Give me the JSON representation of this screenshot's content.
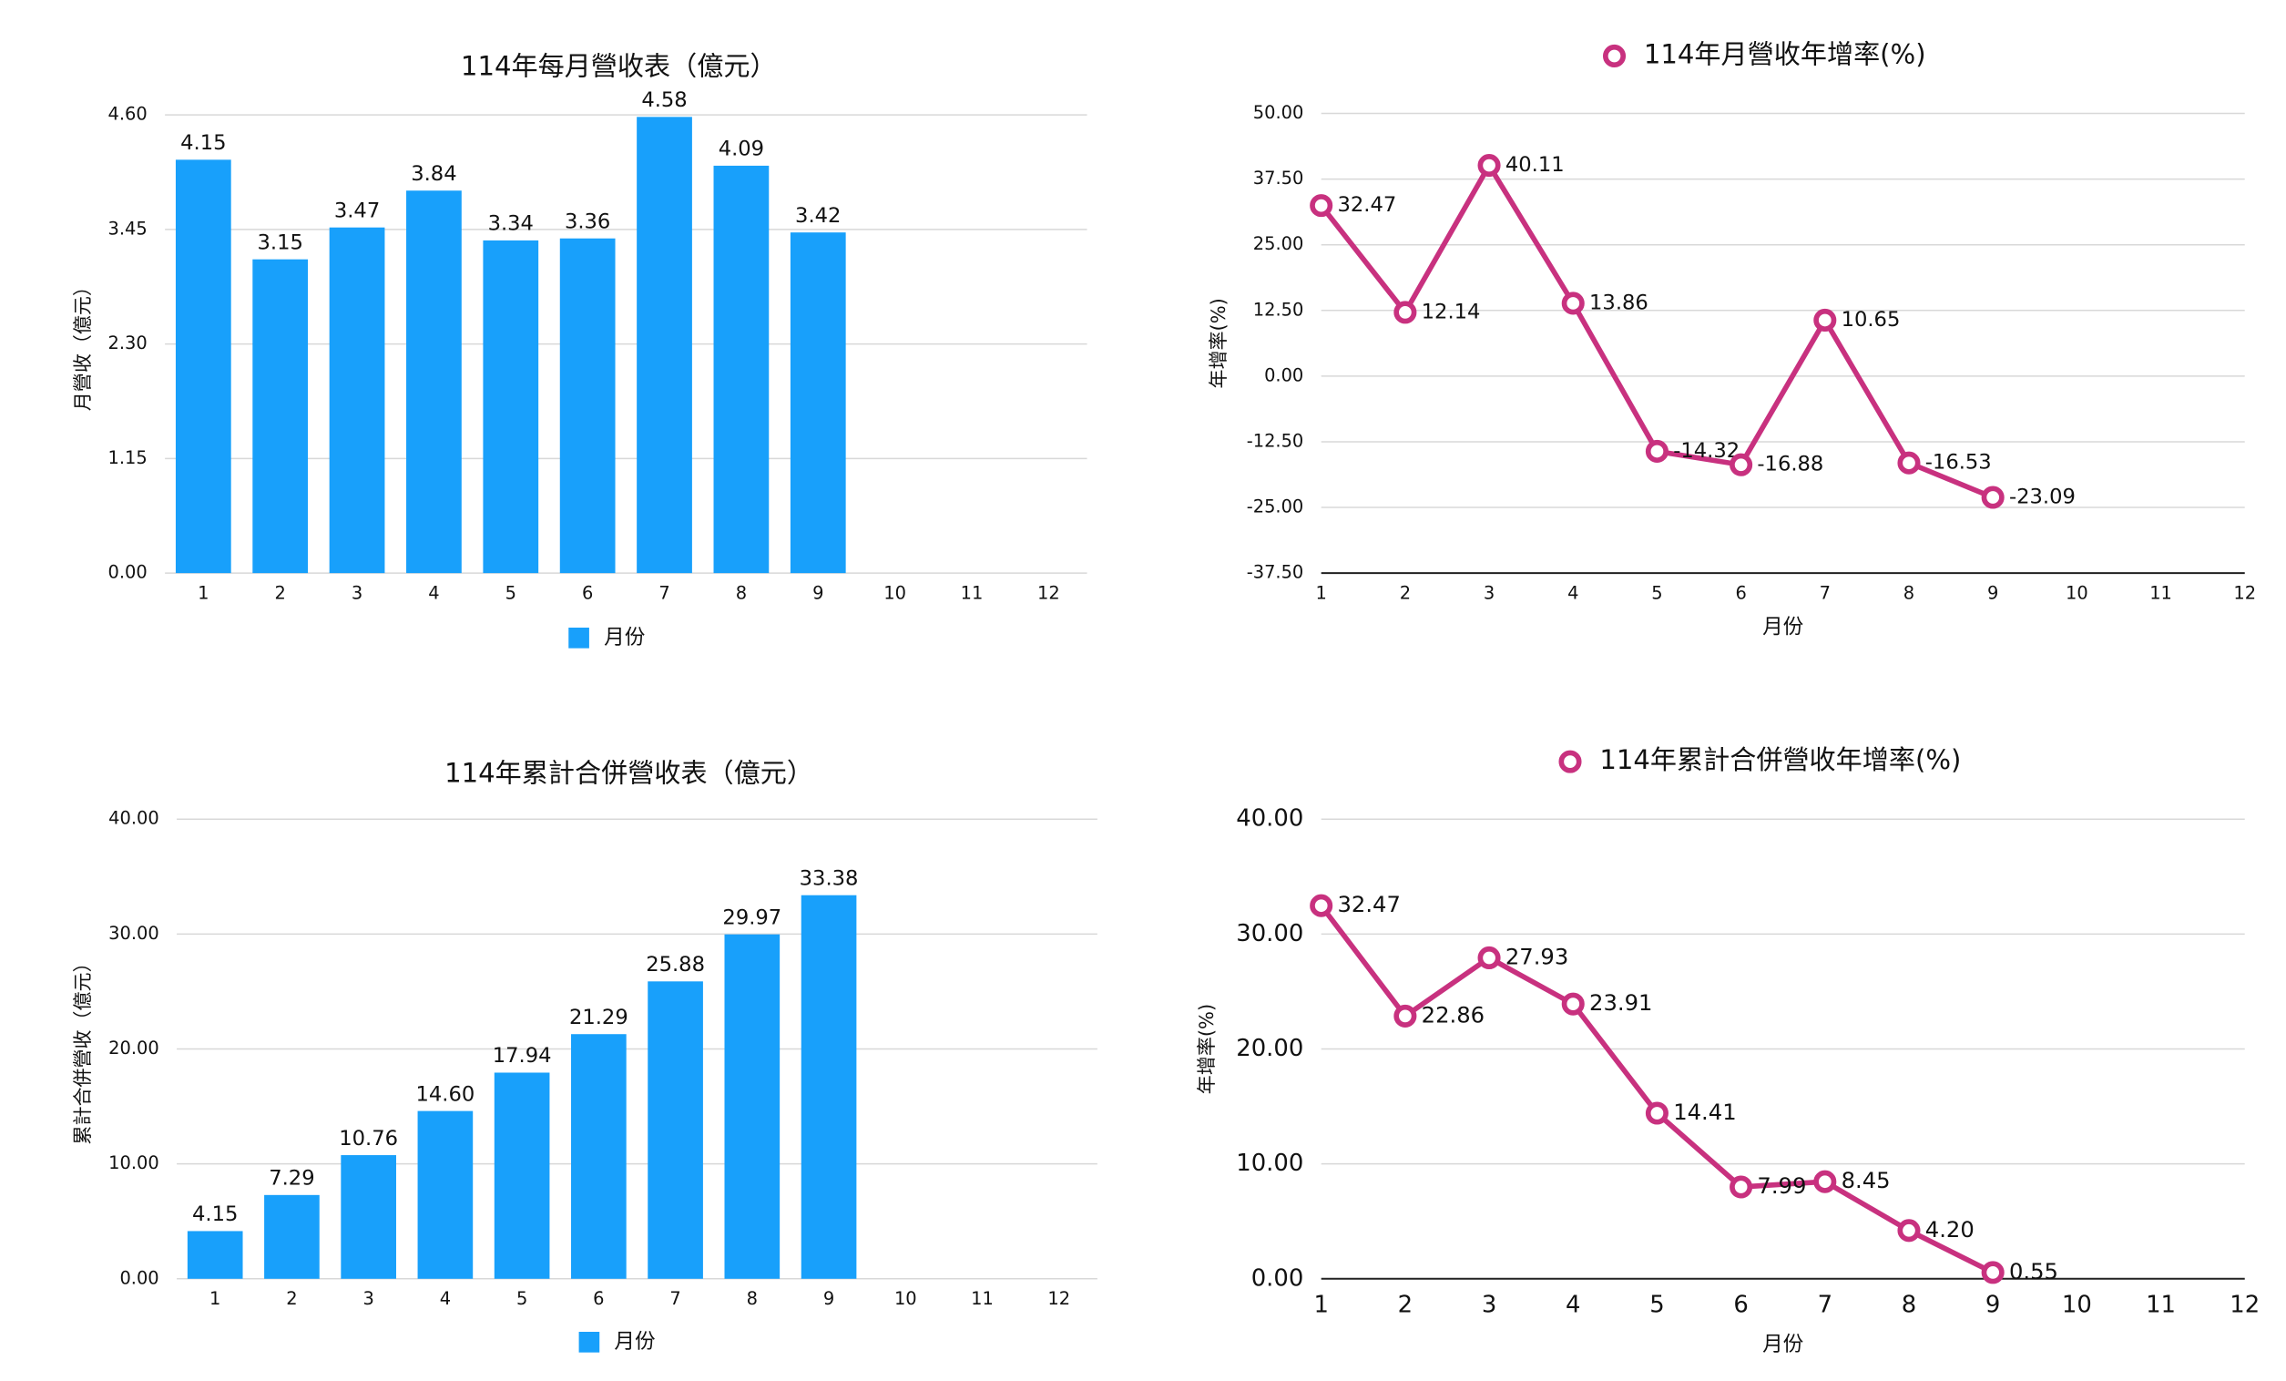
{
  "chart_data": [
    {
      "type": "bar",
      "title": "114年每月營收表（億元）",
      "ylabel": "月營收（億元）",
      "legend": "bottom",
      "categories": [
        "1",
        "2",
        "3",
        "4",
        "5",
        "6",
        "7",
        "8",
        "9",
        "10",
        "11",
        "12"
      ],
      "series": [
        {
          "name": "月份",
          "color": "#18a0fb",
          "values": [
            4.15,
            3.15,
            3.47,
            3.84,
            3.34,
            3.36,
            4.58,
            4.09,
            3.42,
            null,
            null,
            null
          ],
          "value_labels": [
            "4.15",
            "3.15",
            "3.47",
            "3.84",
            "3.34",
            "3.36",
            "4.58",
            "4.09",
            "3.42",
            null,
            null,
            null
          ]
        }
      ],
      "ylim": [
        0,
        4.6
      ],
      "yticks": [
        {
          "value": 0,
          "label": "0.00"
        },
        {
          "value": 1.15,
          "label": "1.15"
        },
        {
          "value": 2.3,
          "label": "2.30"
        },
        {
          "value": 3.45,
          "label": "3.45"
        },
        {
          "value": 4.6,
          "label": "4.60"
        }
      ],
      "grid": true
    },
    {
      "type": "line",
      "ylabel": "年增率(%)",
      "xlabel": "月份",
      "legend": "top",
      "categories": [
        "1",
        "2",
        "3",
        "4",
        "5",
        "6",
        "7",
        "8",
        "9",
        "10",
        "11",
        "12"
      ],
      "series": [
        {
          "name": "114年月營收年增率(%)",
          "color": "#c8317f",
          "values": [
            32.47,
            12.14,
            40.11,
            13.86,
            -14.32,
            -16.88,
            10.65,
            -16.53,
            -23.09,
            null,
            null,
            null
          ],
          "value_labels": [
            "32.47",
            "12.14",
            "40.11",
            "13.86",
            "-14.32",
            "-16.88",
            "10.65",
            "-16.53",
            "-23.09",
            null,
            null,
            null
          ]
        }
      ],
      "ylim": [
        -37.5,
        50
      ],
      "yticks": [
        {
          "value": -37.5,
          "label": "-37.50"
        },
        {
          "value": -25,
          "label": "-25.00"
        },
        {
          "value": -12.5,
          "label": "-12.50"
        },
        {
          "value": 0,
          "label": "0.00"
        },
        {
          "value": 12.5,
          "label": "12.50"
        },
        {
          "value": 25,
          "label": "25.00"
        },
        {
          "value": 37.5,
          "label": "37.50"
        },
        {
          "value": 50,
          "label": "50.00"
        }
      ],
      "grid": true
    },
    {
      "type": "bar",
      "title": "114年累計合併營收表（億元）",
      "ylabel": "累計合併營收（億元）",
      "legend": "bottom",
      "categories": [
        "1",
        "2",
        "3",
        "4",
        "5",
        "6",
        "7",
        "8",
        "9",
        "10",
        "11",
        "12"
      ],
      "series": [
        {
          "name": "月份",
          "color": "#18a0fb",
          "values": [
            4.15,
            7.29,
            10.76,
            14.6,
            17.94,
            21.29,
            25.88,
            29.97,
            33.38,
            null,
            null,
            null
          ],
          "value_labels": [
            "4.15",
            "7.29",
            "10.76",
            "14.60",
            "17.94",
            "21.29",
            "25.88",
            "29.97",
            "33.38",
            null,
            null,
            null
          ]
        }
      ],
      "ylim": [
        0,
        40
      ],
      "yticks": [
        {
          "value": 0,
          "label": "0.00"
        },
        {
          "value": 10,
          "label": "10.00"
        },
        {
          "value": 20,
          "label": "20.00"
        },
        {
          "value": 30,
          "label": "30.00"
        },
        {
          "value": 40,
          "label": "40.00"
        }
      ],
      "grid": true
    },
    {
      "type": "line",
      "ylabel": "年增率(%)",
      "xlabel": "月份",
      "legend": "top",
      "categories": [
        "1",
        "2",
        "3",
        "4",
        "5",
        "6",
        "7",
        "8",
        "9",
        "10",
        "11",
        "12"
      ],
      "series": [
        {
          "name": "114年累計合併營收年增率(%)",
          "color": "#c8317f",
          "values": [
            32.47,
            22.86,
            27.93,
            23.91,
            14.41,
            7.99,
            8.45,
            4.2,
            0.55,
            null,
            null,
            null
          ],
          "value_labels": [
            "32.47",
            "22.86",
            "27.93",
            "23.91",
            "14.41",
            "7.99",
            "8.45",
            "4.20",
            "0.55",
            null,
            null,
            null
          ]
        }
      ],
      "ylim": [
        0,
        40
      ],
      "yticks": [
        {
          "value": 0,
          "label": "0.00"
        },
        {
          "value": 10,
          "label": "10.00"
        },
        {
          "value": 20,
          "label": "20.00"
        },
        {
          "value": 30,
          "label": "30.00"
        },
        {
          "value": 40,
          "label": "40.00"
        }
      ],
      "grid": true
    }
  ]
}
